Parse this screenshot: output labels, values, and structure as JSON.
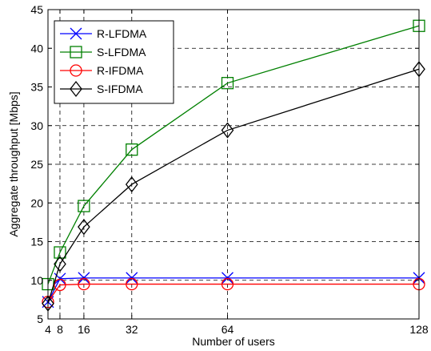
{
  "chart_data": {
    "type": "line",
    "xlabel": "Number of users",
    "ylabel": "Aggregate throughput [Mbps]",
    "x": [
      4,
      8,
      16,
      32,
      64,
      128
    ],
    "xlim": [
      4,
      128
    ],
    "ylim": [
      5,
      45
    ],
    "xticks": [
      4,
      8,
      16,
      32,
      64,
      128
    ],
    "yticks": [
      5,
      10,
      15,
      20,
      25,
      30,
      35,
      40,
      45
    ],
    "grid": true,
    "grid_style": "dashed",
    "legend_position": "top-left",
    "series": [
      {
        "name": "R-LFDMA",
        "values": [
          7.2,
          10.2,
          10.3,
          10.3,
          10.3,
          10.3
        ],
        "color": "#0000ff",
        "marker": "x"
      },
      {
        "name": "S-LFDMA",
        "values": [
          9.5,
          13.6,
          19.6,
          26.9,
          35.5,
          42.9
        ],
        "color": "#008000",
        "marker": "square"
      },
      {
        "name": "R-IFDMA",
        "values": [
          7.2,
          9.4,
          9.5,
          9.5,
          9.5,
          9.5
        ],
        "color": "#ff0000",
        "marker": "circle"
      },
      {
        "name": "S-IFDMA",
        "values": [
          7.0,
          12.1,
          16.9,
          22.4,
          29.4,
          37.3
        ],
        "color": "#000000",
        "marker": "diamond"
      }
    ]
  }
}
